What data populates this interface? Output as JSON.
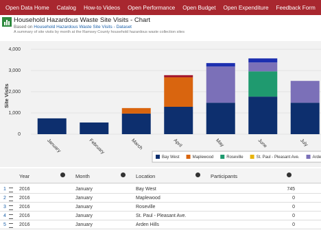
{
  "nav": [
    "Open Data Home",
    "Catalog",
    "How-to Videos",
    "Open Performance",
    "Open Budget",
    "Open Expenditure",
    "Feedback Form"
  ],
  "header": {
    "title": "Household Hazardous Waste Site Visits - Chart",
    "based_on": "Based on",
    "dataset_link": "Household Hazardous Waste Site Visits - Dataset",
    "description": "A summary of site visits by month at the Ramsey County household hazardous waste collection sites"
  },
  "chart_data": {
    "type": "bar",
    "stacked": true,
    "y_label": "Site Visits",
    "categories": [
      "January",
      "February",
      "March",
      "April",
      "May",
      "June",
      "July"
    ],
    "series": [
      {
        "name": "Bay West",
        "color": "#0d2f6e",
        "values": [
          745,
          550,
          970,
          1290,
          1480,
          1770,
          1480
        ]
      },
      {
        "name": "Maplewood",
        "color": "#d9650f",
        "values": [
          null,
          null,
          260,
          1390,
          null,
          null,
          null
        ]
      },
      {
        "name": "Roseville",
        "color": "#1f9a6f",
        "values": [
          null,
          null,
          null,
          null,
          null,
          1190,
          null
        ]
      },
      {
        "name": "St. Paul - Pleasant Ave.",
        "color": "#e8b40e",
        "values": [
          null,
          null,
          null,
          null,
          null,
          null,
          null
        ]
      },
      {
        "name": "Arden Hills",
        "color": "#7b70b8",
        "values": [
          null,
          null,
          null,
          null,
          1710,
          420,
          1030
        ]
      },
      {
        "color": "#a3152a",
        "values": [
          null,
          null,
          null,
          100,
          null,
          null,
          null
        ]
      },
      {
        "color": "#1c2fb0",
        "values": [
          null,
          null,
          null,
          null,
          160,
          190,
          null
        ]
      }
    ],
    "ylim": [
      0,
      4000
    ],
    "yticks": [
      0,
      {
        "value": 1000,
        "label": "1,000"
      },
      {
        "value": 2000,
        "label": "2,000"
      },
      {
        "value": 3000,
        "label": "3,000"
      },
      {
        "value": 4000,
        "label": "4,000"
      }
    ],
    "grid": true
  },
  "table": {
    "columns": [
      "Year",
      "Month",
      "Location",
      "Participants"
    ],
    "rows": [
      [
        1,
        2016,
        "January",
        "Bay West",
        745
      ],
      [
        2,
        2016,
        "January",
        "Maplewood",
        0
      ],
      [
        3,
        2016,
        "January",
        "Roseville",
        0
      ],
      [
        4,
        2016,
        "January",
        "St. Paul - Pleasant Ave.",
        0
      ],
      [
        5,
        2016,
        "January",
        "Arden Hills",
        0
      ]
    ]
  }
}
